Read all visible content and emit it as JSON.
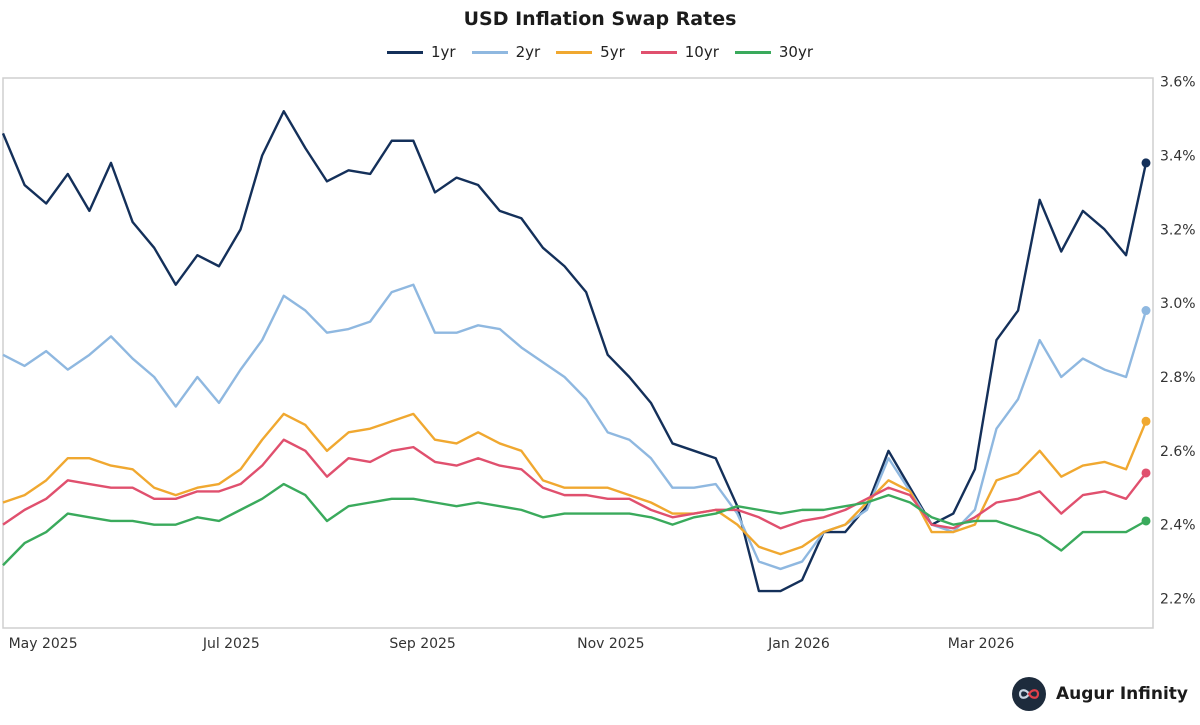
{
  "chart_data": {
    "type": "line",
    "title": "USD Inflation Swap Rates",
    "xlabel": "",
    "ylabel": "",
    "legend_position": "top-center",
    "grid": false,
    "ylim": [
      2.12,
      3.61
    ],
    "xlim": [
      "2025-04-18",
      "2026-04-28"
    ],
    "y_ticks": [
      2.2,
      2.4,
      2.6,
      2.8,
      3.0,
      3.2,
      3.4,
      3.6
    ],
    "y_tick_labels": [
      "2.2%",
      "2.4%",
      "2.6%",
      "2.8%",
      "3.0%",
      "3.2%",
      "3.4%",
      "3.6%"
    ],
    "x_ticks": [
      "2025-05-01",
      "2025-07-01",
      "2025-09-01",
      "2025-11-01",
      "2026-01-01",
      "2026-03-01"
    ],
    "x_tick_labels": [
      "May 2025",
      "Jul 2025",
      "Sep 2025",
      "Nov 2025",
      "Jan 2026",
      "Mar 2026"
    ],
    "x_start": "2025-04-18",
    "x_step_days": 7,
    "series": [
      {
        "name": "1yr",
        "color": "#14305a",
        "values": [
          3.46,
          3.32,
          3.27,
          3.35,
          3.25,
          3.38,
          3.22,
          3.15,
          3.05,
          3.13,
          3.1,
          3.2,
          3.4,
          3.52,
          3.42,
          3.33,
          3.36,
          3.35,
          3.44,
          3.44,
          3.3,
          3.34,
          3.32,
          3.25,
          3.23,
          3.15,
          3.1,
          3.03,
          2.86,
          2.8,
          2.73,
          2.62,
          2.6,
          2.58,
          2.45,
          2.22,
          2.22,
          2.25,
          2.38,
          2.38,
          2.45,
          2.6,
          2.5,
          2.4,
          2.43,
          2.55,
          2.9,
          2.98,
          3.28,
          3.14,
          3.25,
          3.2,
          3.13,
          3.38
        ]
      },
      {
        "name": "2yr",
        "color": "#8fb8e0",
        "values": [
          2.86,
          2.83,
          2.87,
          2.82,
          2.86,
          2.91,
          2.85,
          2.8,
          2.72,
          2.8,
          2.73,
          2.82,
          2.9,
          3.02,
          2.98,
          2.92,
          2.93,
          2.95,
          3.03,
          3.05,
          2.92,
          2.92,
          2.94,
          2.93,
          2.88,
          2.84,
          2.8,
          2.74,
          2.65,
          2.63,
          2.58,
          2.5,
          2.5,
          2.51,
          2.43,
          2.3,
          2.28,
          2.3,
          2.38,
          2.4,
          2.44,
          2.58,
          2.49,
          2.4,
          2.38,
          2.44,
          2.66,
          2.74,
          2.9,
          2.8,
          2.85,
          2.82,
          2.8,
          2.98
        ]
      },
      {
        "name": "5yr",
        "color": "#f0a830",
        "values": [
          2.46,
          2.48,
          2.52,
          2.58,
          2.58,
          2.56,
          2.55,
          2.5,
          2.48,
          2.5,
          2.51,
          2.55,
          2.63,
          2.7,
          2.67,
          2.6,
          2.65,
          2.66,
          2.68,
          2.7,
          2.63,
          2.62,
          2.65,
          2.62,
          2.6,
          2.52,
          2.5,
          2.5,
          2.5,
          2.48,
          2.46,
          2.43,
          2.43,
          2.44,
          2.4,
          2.34,
          2.32,
          2.34,
          2.38,
          2.4,
          2.46,
          2.52,
          2.49,
          2.38,
          2.38,
          2.4,
          2.52,
          2.54,
          2.6,
          2.53,
          2.56,
          2.57,
          2.55,
          2.68
        ]
      },
      {
        "name": "10yr",
        "color": "#e0506e",
        "values": [
          2.4,
          2.44,
          2.47,
          2.52,
          2.51,
          2.5,
          2.5,
          2.47,
          2.47,
          2.49,
          2.49,
          2.51,
          2.56,
          2.63,
          2.6,
          2.53,
          2.58,
          2.57,
          2.6,
          2.61,
          2.57,
          2.56,
          2.58,
          2.56,
          2.55,
          2.5,
          2.48,
          2.48,
          2.47,
          2.47,
          2.44,
          2.42,
          2.43,
          2.44,
          2.44,
          2.42,
          2.39,
          2.41,
          2.42,
          2.44,
          2.47,
          2.5,
          2.48,
          2.4,
          2.39,
          2.42,
          2.46,
          2.47,
          2.49,
          2.43,
          2.48,
          2.49,
          2.47,
          2.54
        ]
      },
      {
        "name": "30yr",
        "color": "#3aaa5c",
        "values": [
          2.29,
          2.35,
          2.38,
          2.43,
          2.42,
          2.41,
          2.41,
          2.4,
          2.4,
          2.42,
          2.41,
          2.44,
          2.47,
          2.51,
          2.48,
          2.41,
          2.45,
          2.46,
          2.47,
          2.47,
          2.46,
          2.45,
          2.46,
          2.45,
          2.44,
          2.42,
          2.43,
          2.43,
          2.43,
          2.43,
          2.42,
          2.4,
          2.42,
          2.43,
          2.45,
          2.44,
          2.43,
          2.44,
          2.44,
          2.45,
          2.46,
          2.48,
          2.46,
          2.42,
          2.4,
          2.41,
          2.41,
          2.39,
          2.37,
          2.33,
          2.38,
          2.38,
          2.38,
          2.41
        ]
      }
    ]
  },
  "brand": {
    "name": "Augur Infinity",
    "logo_icon": "infinity-icon"
  }
}
